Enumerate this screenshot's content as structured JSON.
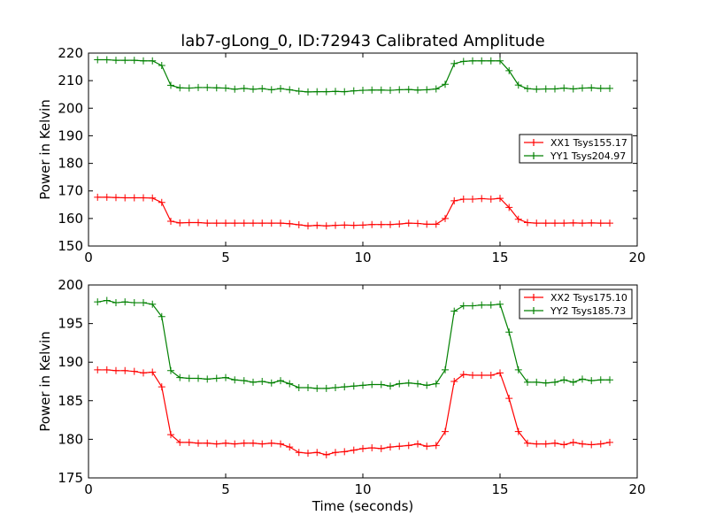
{
  "figure": {
    "title": "lab7-gLong_0, ID:72943 Calibrated Amplitude"
  },
  "chart_data": [
    {
      "type": "line",
      "ylabel": "Power in Kelvin",
      "xlabel": "",
      "xlim": [
        0,
        20
      ],
      "ylim": [
        150,
        220
      ],
      "xticks": [
        0,
        5,
        10,
        15,
        20
      ],
      "yticks": [
        150,
        160,
        170,
        180,
        190,
        200,
        210,
        220
      ],
      "grid": false,
      "legend_position": "center-right",
      "x": [
        0.33,
        0.67,
        1.0,
        1.33,
        1.67,
        2.0,
        2.33,
        2.67,
        3.0,
        3.33,
        3.67,
        4.0,
        4.33,
        4.67,
        5.0,
        5.33,
        5.67,
        6.0,
        6.33,
        6.67,
        7.0,
        7.33,
        7.67,
        8.0,
        8.33,
        8.67,
        9.0,
        9.33,
        9.67,
        10.0,
        10.33,
        10.67,
        11.0,
        11.33,
        11.67,
        12.0,
        12.33,
        12.67,
        13.0,
        13.33,
        13.67,
        14.0,
        14.33,
        14.67,
        15.0,
        15.33,
        15.67,
        16.0,
        16.33,
        16.67,
        17.0,
        17.33,
        17.67,
        18.0,
        18.33,
        18.67,
        19.0
      ],
      "series": [
        {
          "name": "XX1 Tsys155.17",
          "color": "#ff0000",
          "values": [
            167.7,
            167.7,
            167.6,
            167.5,
            167.5,
            167.5,
            167.4,
            165.8,
            159.0,
            158.4,
            158.5,
            158.5,
            158.3,
            158.3,
            158.3,
            158.3,
            158.3,
            158.3,
            158.3,
            158.3,
            158.3,
            158.1,
            157.7,
            157.3,
            157.5,
            157.3,
            157.5,
            157.6,
            157.5,
            157.6,
            157.8,
            157.8,
            157.8,
            158.0,
            158.3,
            158.2,
            157.9,
            157.9,
            160.0,
            166.4,
            167.0,
            167.0,
            167.2,
            167.0,
            167.3,
            164.0,
            159.7,
            158.5,
            158.3,
            158.3,
            158.3,
            158.3,
            158.4,
            158.3,
            158.4,
            158.3,
            158.3
          ]
        },
        {
          "name": "YY1 Tsys204.97",
          "color": "#008000",
          "values": [
            217.6,
            217.6,
            217.4,
            217.4,
            217.4,
            217.2,
            217.2,
            215.5,
            208.3,
            207.4,
            207.3,
            207.5,
            207.5,
            207.4,
            207.3,
            206.9,
            207.2,
            206.9,
            207.1,
            206.7,
            207.1,
            206.7,
            206.2,
            205.9,
            206.0,
            206.0,
            206.1,
            206.0,
            206.3,
            206.5,
            206.6,
            206.6,
            206.5,
            206.7,
            206.8,
            206.6,
            206.7,
            207.0,
            208.7,
            216.2,
            217.0,
            217.2,
            217.2,
            217.2,
            217.2,
            213.6,
            208.4,
            207.1,
            206.9,
            207.0,
            207.0,
            207.3,
            207.0,
            207.3,
            207.4,
            207.2,
            207.2
          ]
        }
      ]
    },
    {
      "type": "line",
      "ylabel": "Power in Kelvin",
      "xlabel": "Time (seconds)",
      "xlim": [
        0,
        20
      ],
      "ylim": [
        175,
        200
      ],
      "xticks": [
        0,
        5,
        10,
        15,
        20
      ],
      "yticks": [
        175,
        180,
        185,
        190,
        195,
        200
      ],
      "grid": false,
      "legend_position": "top-right",
      "x": [
        0.33,
        0.67,
        1.0,
        1.33,
        1.67,
        2.0,
        2.33,
        2.67,
        3.0,
        3.33,
        3.67,
        4.0,
        4.33,
        4.67,
        5.0,
        5.33,
        5.67,
        6.0,
        6.33,
        6.67,
        7.0,
        7.33,
        7.67,
        8.0,
        8.33,
        8.67,
        9.0,
        9.33,
        9.67,
        10.0,
        10.33,
        10.67,
        11.0,
        11.33,
        11.67,
        12.0,
        12.33,
        12.67,
        13.0,
        13.33,
        13.67,
        14.0,
        14.33,
        14.67,
        15.0,
        15.33,
        15.67,
        16.0,
        16.33,
        16.67,
        17.0,
        17.33,
        17.67,
        18.0,
        18.33,
        18.67,
        19.0
      ],
      "series": [
        {
          "name": "XX2 Tsys175.10",
          "color": "#ff0000",
          "values": [
            189.0,
            189.0,
            188.9,
            188.9,
            188.8,
            188.6,
            188.7,
            186.8,
            180.6,
            179.6,
            179.6,
            179.5,
            179.5,
            179.4,
            179.5,
            179.4,
            179.5,
            179.5,
            179.4,
            179.5,
            179.4,
            179.0,
            178.3,
            178.2,
            178.3,
            178.0,
            178.3,
            178.4,
            178.6,
            178.8,
            178.9,
            178.8,
            179.0,
            179.1,
            179.2,
            179.4,
            179.1,
            179.2,
            181.0,
            187.5,
            188.4,
            188.3,
            188.3,
            188.3,
            188.6,
            185.3,
            181.0,
            179.5,
            179.4,
            179.4,
            179.5,
            179.3,
            179.6,
            179.4,
            179.3,
            179.4,
            179.6
          ]
        },
        {
          "name": "YY2 Tsys185.73",
          "color": "#008000",
          "values": [
            197.8,
            198.0,
            197.7,
            197.8,
            197.7,
            197.7,
            197.5,
            195.9,
            188.9,
            188.0,
            187.9,
            187.9,
            187.8,
            187.9,
            188.0,
            187.7,
            187.6,
            187.4,
            187.5,
            187.3,
            187.6,
            187.2,
            186.7,
            186.7,
            186.6,
            186.6,
            186.7,
            186.8,
            186.9,
            187.0,
            187.1,
            187.1,
            186.9,
            187.2,
            187.3,
            187.2,
            187.0,
            187.2,
            189.0,
            196.6,
            197.3,
            197.3,
            197.4,
            197.4,
            197.5,
            193.9,
            189.0,
            187.4,
            187.4,
            187.3,
            187.4,
            187.7,
            187.4,
            187.8,
            187.6,
            187.7,
            187.7
          ]
        }
      ]
    }
  ]
}
